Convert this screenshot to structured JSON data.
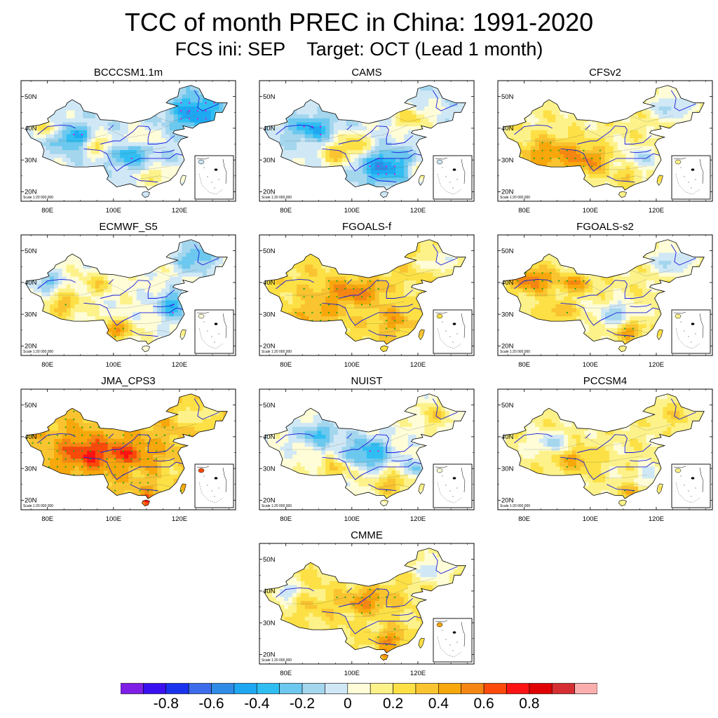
{
  "figure": {
    "title": "TCC of month PREC in China: 1991-2020",
    "subtitle_left": "FCS ini: SEP",
    "subtitle_right": "Target: OCT (Lead 1 month)"
  },
  "map": {
    "lon_ticks": [
      "80E",
      "100E",
      "120E"
    ],
    "lat_ticks": [
      "50N",
      "40N",
      "30N",
      "20N"
    ],
    "scale_text": "Scale 1:20 000 000",
    "inset": "South China Sea islands"
  },
  "panels": [
    {
      "name": "BCCCSM1.1m",
      "pattern": "mixed-blue-northeast"
    },
    {
      "name": "CAMS",
      "pattern": "mixed-blue-south"
    },
    {
      "name": "CFSv2",
      "pattern": "warm-west"
    },
    {
      "name": "ECMWF_S5",
      "pattern": "mixed-warm-southwest"
    },
    {
      "name": "FGOALS-f",
      "pattern": "warm-central"
    },
    {
      "name": "FGOALS-s2",
      "pattern": "warm-northwest"
    },
    {
      "name": "JMA_CPS3",
      "pattern": "strong-warm"
    },
    {
      "name": "NUIST",
      "pattern": "cool-central"
    },
    {
      "name": "PCCSM4",
      "pattern": "mild-warm"
    },
    {
      "name": "CMME",
      "pattern": "warm-central-east"
    }
  ],
  "colorbar": {
    "colors": [
      "#7f1fe6",
      "#3a10f0",
      "#1a34ee",
      "#3d6cea",
      "#2f8ce6",
      "#1ea8f2",
      "#30bef2",
      "#6cc8ee",
      "#a4d6ee",
      "#d0e8f6",
      "#fefdd8",
      "#fdf28a",
      "#fce045",
      "#f9c430",
      "#f8a70c",
      "#f58613",
      "#fb4a0a",
      "#fc1314",
      "#e00202",
      "#d62f33",
      "#faaeae"
    ],
    "labels": [
      "-0.8",
      "-0.6",
      "-0.4",
      "-0.2",
      "0",
      "0.2",
      "0.4",
      "0.6",
      "0.8"
    ],
    "label_values": [
      -0.8,
      -0.6,
      -0.4,
      -0.2,
      0,
      0.2,
      0.4,
      0.6,
      0.8
    ]
  }
}
